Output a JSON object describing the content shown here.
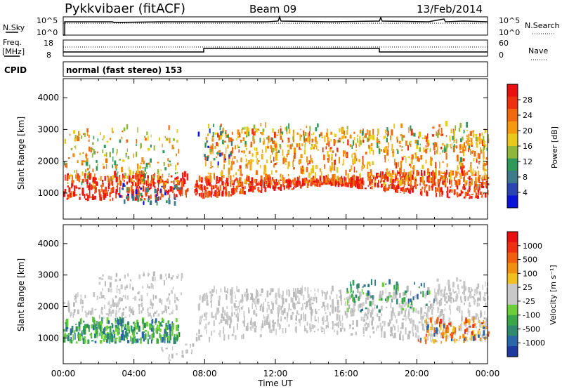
{
  "header": {
    "station": "Pykkvibaer (fitACF)",
    "beam": "Beam 09",
    "date": "13/Feb/2014"
  },
  "top_panels": {
    "nsky_label": "N.Sky",
    "nsky_ticks": [
      "10^5",
      "10^0"
    ],
    "nsearch_ticks": [
      "10^5",
      "10^0"
    ],
    "nsearch_label": "N.Search",
    "freq_label": "Freq.",
    "freq_unit": "[MHz]",
    "freq_ticks": [
      "18",
      "8"
    ],
    "nave_ticks": [
      "60",
      "0"
    ],
    "nave_label": "Nave",
    "cpid_label": "CPID",
    "cpid_text": "normal (fast stereo) 153"
  },
  "chart_data": [
    {
      "type": "heatmap",
      "name": "power",
      "xlabel": "Time UT",
      "ylabel": "Slant Range [km]",
      "x_ticks": [
        "00:00",
        "04:00",
        "08:00",
        "12:00",
        "16:00",
        "20:00",
        "00:00"
      ],
      "xlim_hours": [
        0,
        24
      ],
      "y_ticks": [
        1000,
        2000,
        3000,
        4000
      ],
      "ylim": [
        180,
        4600
      ],
      "colorbar_label": "Power [dB]",
      "colorbar_ticks": [
        "28",
        "24",
        "20",
        "16",
        "12",
        "8",
        "4"
      ],
      "colorbar_range": [
        0,
        30
      ],
      "colorbar_colors": [
        "#0a14d9",
        "#2a45b0",
        "#3d7a8a",
        "#2e9a5a",
        "#8fb83a",
        "#e8c81a",
        "#f59a10",
        "#f06a10",
        "#ee3010",
        "#e81010"
      ]
    },
    {
      "type": "heatmap",
      "name": "velocity",
      "xlabel": "Time UT",
      "ylabel": "Slant Range [km]",
      "x_ticks": [
        "00:00",
        "04:00",
        "08:00",
        "12:00",
        "16:00",
        "20:00",
        "00:00"
      ],
      "xlim_hours": [
        0,
        24
      ],
      "y_ticks": [
        1000,
        2000,
        3000,
        4000
      ],
      "ylim": [
        180,
        4600
      ],
      "colorbar_label": "Velocity [m s⁻¹]",
      "colorbar_ticks": [
        "1000",
        "500",
        "100",
        "25",
        "-25",
        "-100",
        "-500",
        "-1000"
      ],
      "colorbar_colors": [
        "#1e3aa0",
        "#2a66a8",
        "#2e8a6e",
        "#3aa84a",
        "#6ccf3a",
        "#c8c8c8",
        "#c8c8c8",
        "#f0c020",
        "#f09010",
        "#f06010",
        "#ee3010",
        "#e81010"
      ]
    }
  ],
  "time_axis": {
    "label": "Time UT",
    "ticks": [
      "00:00",
      "04:00",
      "08:00",
      "12:00",
      "16:00",
      "20:00",
      "00:00"
    ]
  }
}
